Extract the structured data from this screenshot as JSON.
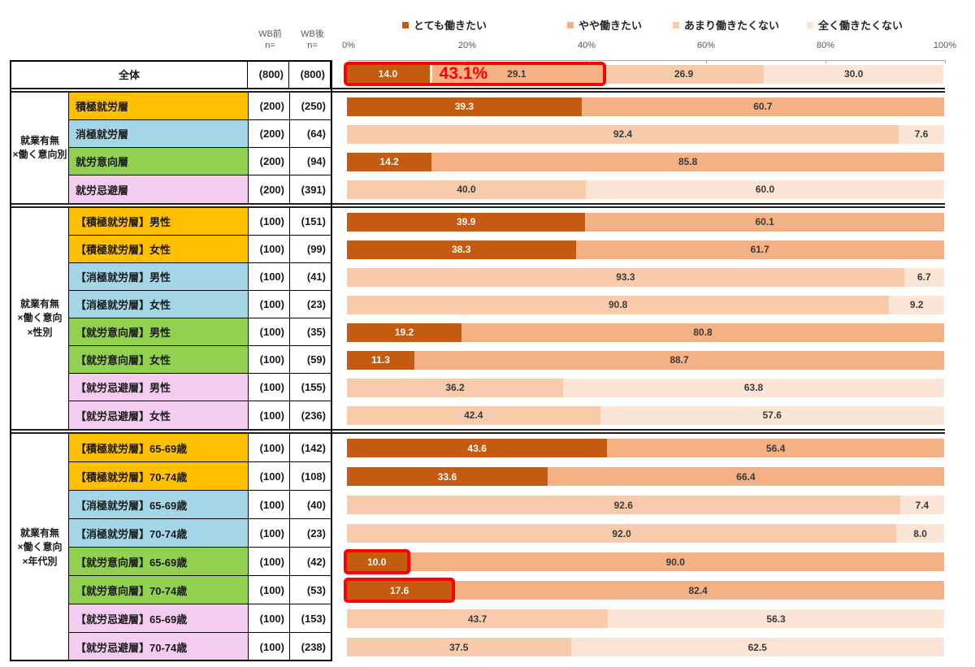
{
  "header": {
    "wb_before": "WB前\nn=",
    "wb_after": "WB後\nn="
  },
  "legend": [
    {
      "label": "とても働きたい",
      "color": "#C55A11"
    },
    {
      "label": "やや働きたい",
      "color": "#F4B183"
    },
    {
      "label": "あまり働きたくない",
      "color": "#F8CBAD"
    },
    {
      "label": "全く働きたくない",
      "color": "#FBE5D6"
    }
  ],
  "chart_data": {
    "type": "bar",
    "stacked": true,
    "orientation": "horizontal",
    "unit": "%",
    "x_axis": {
      "ticks": [
        "0%",
        "20%",
        "40%",
        "60%",
        "80%",
        "100%"
      ],
      "range": [
        0,
        100
      ],
      "position": "top"
    },
    "series": [
      "とても働きたい",
      "やや働きたい",
      "あまり働きたくない",
      "全く働きたくない"
    ],
    "series_colors": [
      "#C55A11",
      "#F4B183",
      "#F8CBAD",
      "#FBE5D6"
    ],
    "highlight_color": "#FE0000",
    "sections": [
      {
        "group_label": null,
        "rows": [
          {
            "label": "全体",
            "bg": "#FFFFFF",
            "n_wb_before": "(800)",
            "n_wb_after": "(800)",
            "segments": [
              {
                "series": 0,
                "value": 14.0
              },
              {
                "series": 1,
                "value": 29.1
              },
              {
                "series": 2,
                "value": 26.9
              },
              {
                "series": 3,
                "value": 30.0
              }
            ],
            "annotation": {
              "text": "43.1%",
              "span_percent": 43.1,
              "divider_percent": 14.0,
              "color": "#FE0000"
            }
          }
        ]
      },
      {
        "group_label": "就業有無\n×働く意向別",
        "rows": [
          {
            "label": "積極就労層",
            "bg": "#FFC000",
            "n_wb_before": "(200)",
            "n_wb_after": "(250)",
            "segments": [
              {
                "series": 0,
                "value": 39.3
              },
              {
                "series": 1,
                "value": 60.7
              }
            ]
          },
          {
            "label": "消極就労層",
            "bg": "#A3D6E6",
            "n_wb_before": "(200)",
            "n_wb_after": "(64)",
            "segments": [
              {
                "series": 2,
                "value": 92.4
              },
              {
                "series": 3,
                "value": 7.6
              }
            ]
          },
          {
            "label": "就労意向層",
            "bg": "#92D050",
            "n_wb_before": "(200)",
            "n_wb_after": "(94)",
            "segments": [
              {
                "series": 0,
                "value": 14.2
              },
              {
                "series": 1,
                "value": 85.8
              }
            ]
          },
          {
            "label": "就労忌避層",
            "bg": "#F3CCF0",
            "n_wb_before": "(200)",
            "n_wb_after": "(391)",
            "segments": [
              {
                "series": 2,
                "value": 40.0
              },
              {
                "series": 3,
                "value": 60.0
              }
            ]
          }
        ]
      },
      {
        "group_label": "就業有無\n×働く意向\n×性別",
        "rows": [
          {
            "label": "【積極就労層】男性",
            "bg": "#FFC000",
            "n_wb_before": "(100)",
            "n_wb_after": "(151)",
            "segments": [
              {
                "series": 0,
                "value": 39.9
              },
              {
                "series": 1,
                "value": 60.1
              }
            ]
          },
          {
            "label": "【積極就労層】女性",
            "bg": "#FFC000",
            "n_wb_before": "(100)",
            "n_wb_after": "(99)",
            "segments": [
              {
                "series": 0,
                "value": 38.3
              },
              {
                "series": 1,
                "value": 61.7
              }
            ]
          },
          {
            "label": "【消極就労層】男性",
            "bg": "#A3D6E6",
            "n_wb_before": "(100)",
            "n_wb_after": "(41)",
            "segments": [
              {
                "series": 2,
                "value": 93.3
              },
              {
                "series": 3,
                "value": 6.7
              }
            ]
          },
          {
            "label": "【消極就労層】女性",
            "bg": "#A3D6E6",
            "n_wb_before": "(100)",
            "n_wb_after": "(23)",
            "segments": [
              {
                "series": 2,
                "value": 90.8
              },
              {
                "series": 3,
                "value": 9.2
              }
            ]
          },
          {
            "label": "【就労意向層】男性",
            "bg": "#92D050",
            "n_wb_before": "(100)",
            "n_wb_after": "(35)",
            "segments": [
              {
                "series": 0,
                "value": 19.2
              },
              {
                "series": 1,
                "value": 80.8
              }
            ]
          },
          {
            "label": "【就労意向層】女性",
            "bg": "#92D050",
            "n_wb_before": "(100)",
            "n_wb_after": "(59)",
            "segments": [
              {
                "series": 0,
                "value": 11.3
              },
              {
                "series": 1,
                "value": 88.7
              }
            ]
          },
          {
            "label": "【就労忌避層】男性",
            "bg": "#F3CCF0",
            "n_wb_before": "(100)",
            "n_wb_after": "(155)",
            "segments": [
              {
                "series": 2,
                "value": 36.2
              },
              {
                "series": 3,
                "value": 63.8
              }
            ]
          },
          {
            "label": "【就労忌避層】女性",
            "bg": "#F3CCF0",
            "n_wb_before": "(100)",
            "n_wb_after": "(236)",
            "segments": [
              {
                "series": 2,
                "value": 42.4
              },
              {
                "series": 3,
                "value": 57.6
              }
            ]
          }
        ]
      },
      {
        "group_label": "就業有無\n×働く意向\n×年代別",
        "rows": [
          {
            "label": "【積極就労層】65-69歳",
            "bg": "#FFC000",
            "n_wb_before": "(100)",
            "n_wb_after": "(142)",
            "segments": [
              {
                "series": 0,
                "value": 43.6
              },
              {
                "series": 1,
                "value": 56.4
              }
            ]
          },
          {
            "label": "【積極就労層】70-74歳",
            "bg": "#FFC000",
            "n_wb_before": "(100)",
            "n_wb_after": "(108)",
            "segments": [
              {
                "series": 0,
                "value": 33.6
              },
              {
                "series": 1,
                "value": 66.4
              }
            ]
          },
          {
            "label": "【消極就労層】65-69歳",
            "bg": "#A3D6E6",
            "n_wb_before": "(100)",
            "n_wb_after": "(40)",
            "segments": [
              {
                "series": 2,
                "value": 92.6
              },
              {
                "series": 3,
                "value": 7.4
              }
            ]
          },
          {
            "label": "【消極就労層】70-74歳",
            "bg": "#A3D6E6",
            "n_wb_before": "(100)",
            "n_wb_after": "(23)",
            "segments": [
              {
                "series": 2,
                "value": 92.0
              },
              {
                "series": 3,
                "value": 8.0
              }
            ]
          },
          {
            "label": "【就労意向層】65-69歳",
            "bg": "#92D050",
            "n_wb_before": "(100)",
            "n_wb_after": "(42)",
            "segments": [
              {
                "series": 0,
                "value": 10.0
              },
              {
                "series": 1,
                "value": 90.0
              }
            ],
            "highlight_segment": 0
          },
          {
            "label": "【就労意向層】70-74歳",
            "bg": "#92D050",
            "n_wb_before": "(100)",
            "n_wb_after": "(53)",
            "segments": [
              {
                "series": 0,
                "value": 17.6
              },
              {
                "series": 1,
                "value": 82.4
              }
            ],
            "highlight_segment": 0
          },
          {
            "label": "【就労忌避層】65-69歳",
            "bg": "#F3CCF0",
            "n_wb_before": "(100)",
            "n_wb_after": "(153)",
            "segments": [
              {
                "series": 2,
                "value": 43.7
              },
              {
                "series": 3,
                "value": 56.3
              }
            ]
          },
          {
            "label": "【就労忌避層】70-74歳",
            "bg": "#F3CCF0",
            "n_wb_before": "(100)",
            "n_wb_after": "(238)",
            "segments": [
              {
                "series": 2,
                "value": 37.5
              },
              {
                "series": 3,
                "value": 62.5
              }
            ]
          }
        ]
      }
    ]
  }
}
